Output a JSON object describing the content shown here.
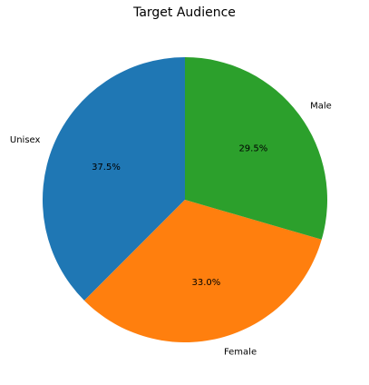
{
  "chart_data": {
    "type": "pie",
    "title": "Target Audience",
    "start_angle_deg": 90,
    "counterclockwise": true,
    "slices": [
      {
        "label": "Unisex",
        "value": 37.5,
        "pct_label": "37.5%",
        "color": "#1f77b4"
      },
      {
        "label": "Female",
        "value": 33.0,
        "pct_label": "33.0%",
        "color": "#ff7f0e"
      },
      {
        "label": "Male",
        "value": 29.5,
        "pct_label": "29.5%",
        "color": "#2ca02c"
      }
    ]
  }
}
